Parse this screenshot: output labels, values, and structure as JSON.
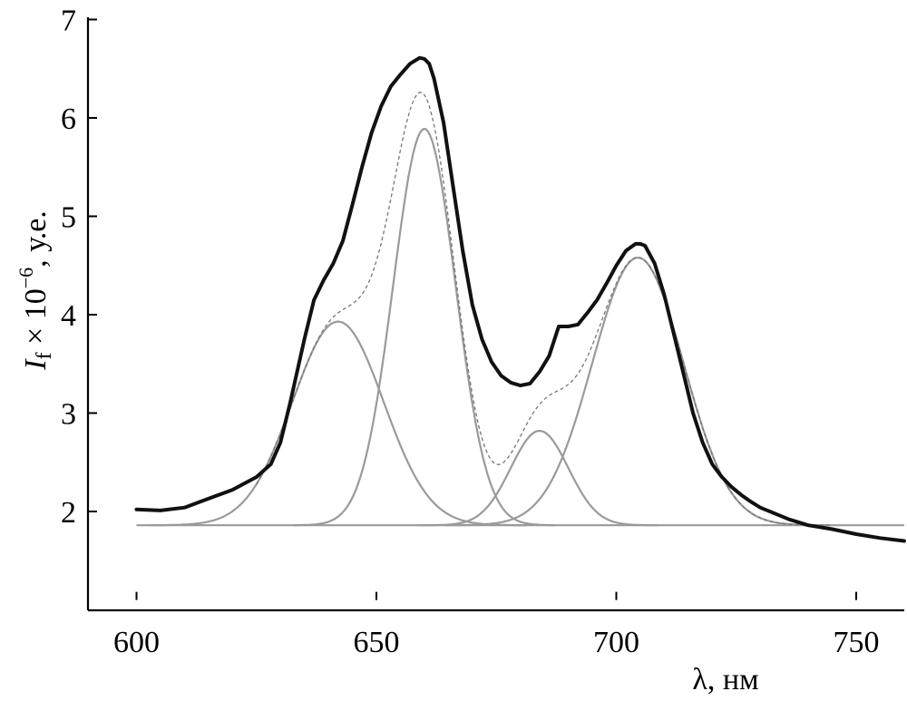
{
  "chart_data": {
    "type": "line",
    "xlabel": "λ, нм",
    "ylabel": {
      "symbol": "I",
      "subscript": "f",
      "times": " × 10",
      "exponent": "−6",
      "unit": ", у.е."
    },
    "xlim": [
      590,
      760
    ],
    "ylim": [
      1.1,
      7.0
    ],
    "x_ticks": [
      600,
      650,
      700,
      750
    ],
    "y_ticks": [
      2,
      3,
      4,
      5,
      6,
      7
    ],
    "grid": false,
    "legend": "none",
    "colors": {
      "measured": "#111111",
      "fit_sum": "#777777",
      "components": "#9a9a9a",
      "baseline": "#9a9a9a"
    },
    "baseline": 1.86,
    "components": [
      {
        "center": 642,
        "amplitude": 2.07,
        "sigma": 9.5
      },
      {
        "center": 660,
        "amplitude": 4.03,
        "sigma": 6.5
      },
      {
        "center": 684,
        "amplitude": 0.96,
        "sigma": 6.0
      },
      {
        "center": 704.5,
        "amplitude": 2.72,
        "sigma": 9.5
      }
    ],
    "series": [
      {
        "role": "measured",
        "x": [
          600,
          605,
          610,
          615,
          620,
          625,
          628,
          630,
          632,
          635,
          637,
          639,
          641,
          643,
          645,
          647,
          649,
          651,
          653,
          655,
          657,
          659,
          660,
          661,
          662,
          664,
          666,
          668,
          670,
          672,
          674,
          676,
          678,
          680,
          682,
          684,
          686,
          688,
          690,
          692,
          694,
          696,
          698,
          700,
          702,
          704,
          705,
          706,
          708,
          710,
          712,
          714,
          716,
          718,
          720,
          722,
          724,
          726,
          728,
          730,
          733,
          736,
          740,
          745,
          750,
          755,
          760
        ],
        "y": [
          2.02,
          2.01,
          2.04,
          2.13,
          2.22,
          2.35,
          2.48,
          2.7,
          3.1,
          3.75,
          4.15,
          4.35,
          4.52,
          4.75,
          5.12,
          5.5,
          5.85,
          6.12,
          6.32,
          6.44,
          6.55,
          6.61,
          6.6,
          6.55,
          6.4,
          5.95,
          5.3,
          4.65,
          4.1,
          3.75,
          3.52,
          3.38,
          3.31,
          3.28,
          3.3,
          3.42,
          3.58,
          3.88,
          3.88,
          3.9,
          4.02,
          4.15,
          4.32,
          4.5,
          4.65,
          4.72,
          4.72,
          4.7,
          4.52,
          4.2,
          3.8,
          3.4,
          3.0,
          2.7,
          2.48,
          2.35,
          2.25,
          2.17,
          2.1,
          2.04,
          1.98,
          1.92,
          1.86,
          1.82,
          1.77,
          1.73,
          1.7
        ]
      }
    ]
  }
}
